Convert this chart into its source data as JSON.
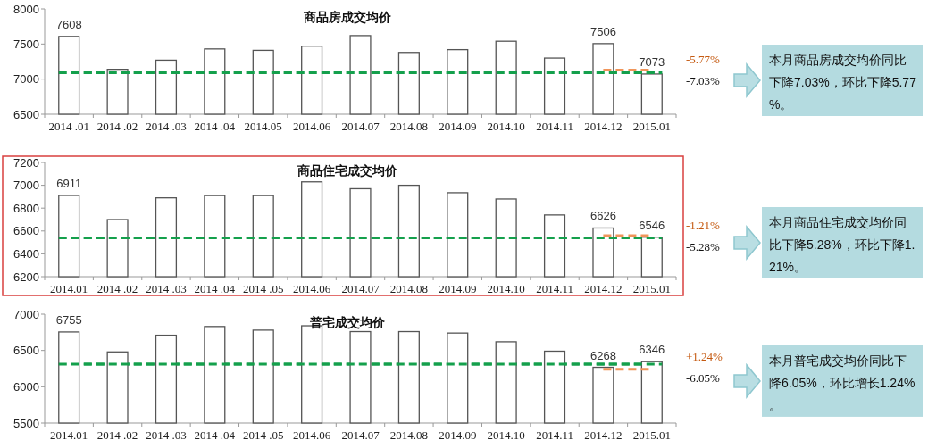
{
  "chart_data": [
    {
      "type": "bar",
      "title": "商品房成交均价",
      "categories": [
        "2014 .01",
        "2014 .02",
        "2014 .03",
        "2014 .04",
        "2014.05",
        "2014.06",
        "2014.07",
        "2014.08",
        "2014.09",
        "2014.10",
        "2014.11",
        "2014.12",
        "2015.01"
      ],
      "ylim": [
        6500,
        8000
      ],
      "yticks": [
        6500,
        7000,
        7500,
        8000
      ],
      "series": [
        {
          "color": "#ffffff",
          "values": [
            7608,
            7140,
            7270,
            7430,
            7410,
            7470,
            7620,
            7380,
            7420,
            7540,
            7300,
            7506,
            7073
          ],
          "value_labels": [
            "7608",
            null,
            null,
            null,
            null,
            null,
            null,
            null,
            null,
            null,
            null,
            "7506",
            "7073"
          ]
        },
        {
          "type": "line",
          "color": "#f0955a",
          "line_style": "dashed",
          "values": [
            null,
            null,
            null,
            null,
            null,
            null,
            null,
            null,
            null,
            null,
            null,
            7130,
            7130
          ]
        }
      ],
      "ref_lines": [
        {
          "axis": "y",
          "value": 7090,
          "color": "#14a04c",
          "line_style": "dashed"
        }
      ],
      "annotations": [
        "-5.77%",
        "-7.03%",
        "本月商品房成交均价同比下降7.03%，环比下降5.77%。"
      ]
    },
    {
      "type": "bar",
      "title": "商品住宅成交均价",
      "categories": [
        "2014.01",
        "2014 .02",
        "2014 .03",
        "2014 .04",
        "2014 .05",
        "2014.06",
        "2014.07",
        "2014.08",
        "2014.09",
        "2014.10",
        "2014.11",
        "2014.12",
        "2015.01"
      ],
      "ylim": [
        6200,
        7200
      ],
      "yticks": [
        6200,
        6400,
        6600,
        6800,
        7000,
        7200
      ],
      "series": [
        {
          "color": "#ffffff",
          "values": [
            6911,
            6700,
            6890,
            6910,
            6910,
            7030,
            6970,
            7000,
            6935,
            6880,
            6740,
            6626,
            6546
          ],
          "value_labels": [
            "6911",
            null,
            null,
            null,
            null,
            null,
            null,
            null,
            null,
            null,
            null,
            "6626",
            "6546"
          ]
        },
        {
          "type": "line",
          "color": "#f0955a",
          "line_style": "dashed",
          "values": [
            null,
            null,
            null,
            null,
            null,
            null,
            null,
            null,
            null,
            null,
            null,
            6560,
            6560
          ]
        }
      ],
      "ref_lines": [
        {
          "axis": "y",
          "value": 6540,
          "color": "#14a04c",
          "line_style": "dashed"
        }
      ],
      "annotations": [
        "-1.21%",
        "-5.28%",
        "本月商品住宅成交均价同比下降5.28%，环比下降1.21%。"
      ]
    },
    {
      "type": "bar",
      "title": "普宅成交均价",
      "categories": [
        "2014.01",
        "2014 .02",
        "2014 .03",
        "2014 .04",
        "2014 .05",
        "2014.06",
        "2014.07",
        "2014.08",
        "2014.09",
        "2014.10",
        "2014.11",
        "2014.12",
        "2015.01"
      ],
      "ylim": [
        5500,
        7000
      ],
      "yticks": [
        5500,
        6000,
        6500,
        7000
      ],
      "series": [
        {
          "color": "#ffffff",
          "values": [
            6755,
            6480,
            6710,
            6830,
            6780,
            6840,
            6760,
            6760,
            6740,
            6620,
            6490,
            6268,
            6346
          ],
          "value_labels": [
            "6755",
            null,
            null,
            null,
            null,
            null,
            null,
            null,
            null,
            null,
            null,
            "6268",
            "6346"
          ]
        },
        {
          "type": "line",
          "color": "#f0955a",
          "line_style": "dashed",
          "values": [
            null,
            null,
            null,
            null,
            null,
            null,
            null,
            null,
            null,
            null,
            null,
            6240,
            6240
          ]
        }
      ],
      "ref_lines": [
        {
          "axis": "y",
          "value": 6310,
          "color": "#14a04c",
          "line_style": "dashed"
        }
      ],
      "annotations": [
        "+1.24%",
        "-6.05%",
        "本月普宅成交均价同比下降6.05%，环比增长1.24%。"
      ]
    }
  ]
}
